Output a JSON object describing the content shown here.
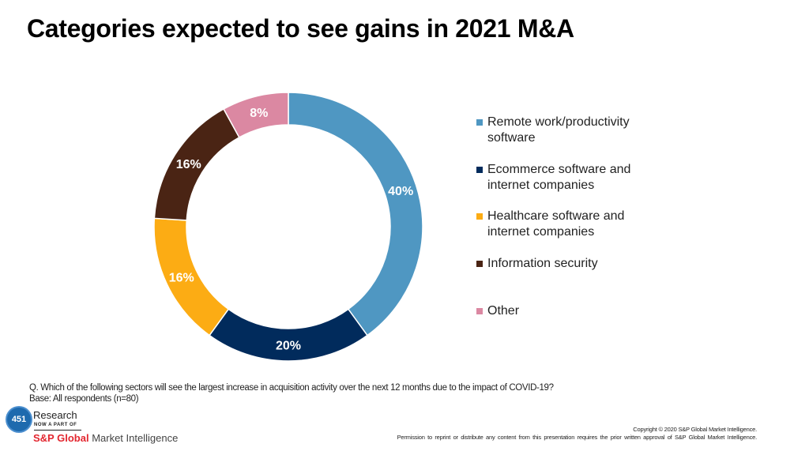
{
  "chart_data": {
    "type": "pie",
    "variant": "donut",
    "title": "Categories expected to see gains in 2021 M&A",
    "categories": [
      "Remote work/productivity software",
      "Ecommerce software and internet companies",
      "Healthcare software and internet companies",
      "Information security",
      "Other"
    ],
    "values": [
      40,
      20,
      16,
      16,
      8
    ],
    "labels": [
      "40%",
      "20%",
      "16%",
      "16%",
      "8%"
    ],
    "colors": [
      "#4f97c2",
      "#012b5c",
      "#fcac14",
      "#4a2414",
      "#db88a2"
    ],
    "unit": "%",
    "start_angle": "12 o'clock",
    "direction": "clockwise",
    "legend_position": "right"
  },
  "legend": [
    {
      "line1": "Remote work/productivity",
      "line2": "software",
      "color": "#4f97c2"
    },
    {
      "line1": "Ecommerce software and",
      "line2": "internet companies",
      "color": "#012b5c"
    },
    {
      "line1": "Healthcare software and",
      "line2": "internet companies",
      "color": "#fcac14"
    },
    {
      "line1": "Information security",
      "line2": "",
      "color": "#4a2414"
    },
    {
      "line1": "Other",
      "line2": "",
      "color": "#db88a2"
    }
  ],
  "note": {
    "question": "Q. Which of the following sectors will see the largest increase in acquisition activity over the next 12 months due to the impact of COVID-19?",
    "base": "Base: All respondents (n=80)"
  },
  "logo": {
    "badge": "451",
    "research": "Research",
    "now_part_of": "NOW A PART OF",
    "brand": "S&P Global",
    "brand_suffix": "Market Intelligence"
  },
  "footer": {
    "copyright": "Copyright © 2020 S&P Global Market Intelligence.",
    "permission": "Permission to reprint or distribute any content from this presentation requires the prior written approval of S&P Global Market Intelligence."
  }
}
